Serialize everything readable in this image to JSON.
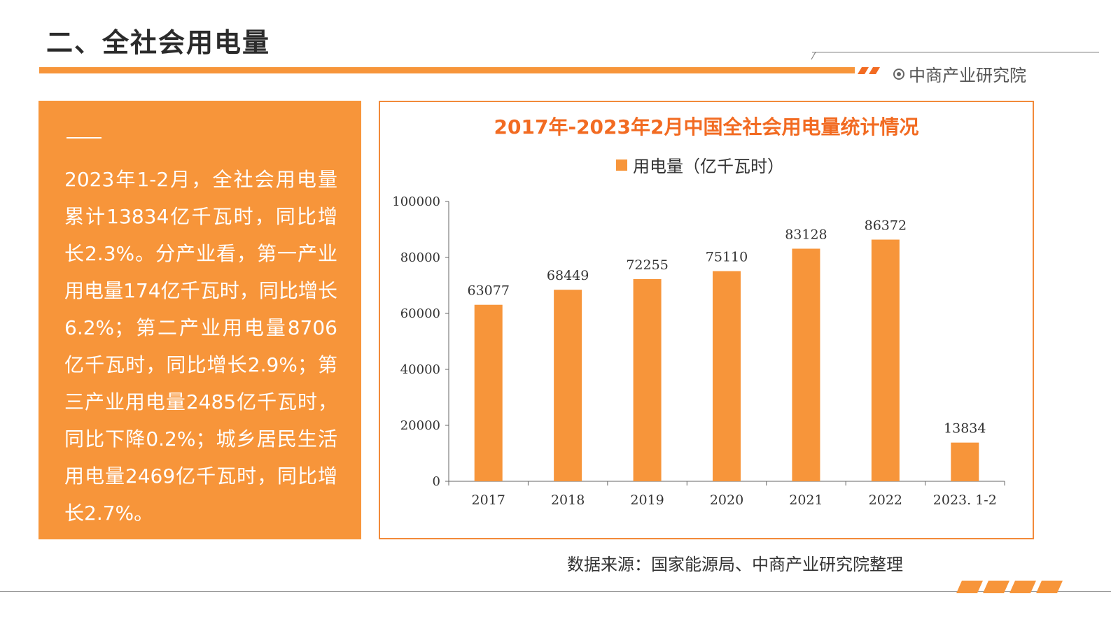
{
  "page": {
    "title": "二、全社会用电量",
    "brand": "中商产业研究院",
    "source": "数据来源：国家能源局、中商产业研究院整理",
    "accent_color": "#f7953a",
    "title_color": "#f26b22"
  },
  "panel": {
    "text": "2023年1-2月，全社会用电量累计13834亿千瓦时，同比增长2.3%。分产业看，第一产业用电量174亿千瓦时，同比增长6.2%；第二产业用电量8706亿千瓦时，同比增长2.9%；第三产业用电量2485亿千瓦时，同比下降0.2%；城乡居民生活用电量2469亿千瓦时，同比增长2.7%。"
  },
  "chart_data": {
    "type": "bar",
    "title": "2017年-2023年2月中国全社会用电量统计情况",
    "categories": [
      "2017",
      "2018",
      "2019",
      "2020",
      "2021",
      "2022",
      "2023. 1-2"
    ],
    "series": [
      {
        "name": "用电量（亿千瓦时）",
        "values": [
          63077,
          68449,
          72255,
          75110,
          83128,
          86372,
          13834
        ]
      }
    ],
    "data_labels": [
      "63077",
      "68449",
      "72255",
      "75110",
      "83128",
      "86372",
      "13834"
    ],
    "ylim": [
      0,
      100000
    ],
    "yticks": [
      "0",
      "20000",
      "40000",
      "60000",
      "80000",
      "100000"
    ],
    "grid": false,
    "legend_position": "top-center",
    "bar_color": "#f7953a"
  }
}
